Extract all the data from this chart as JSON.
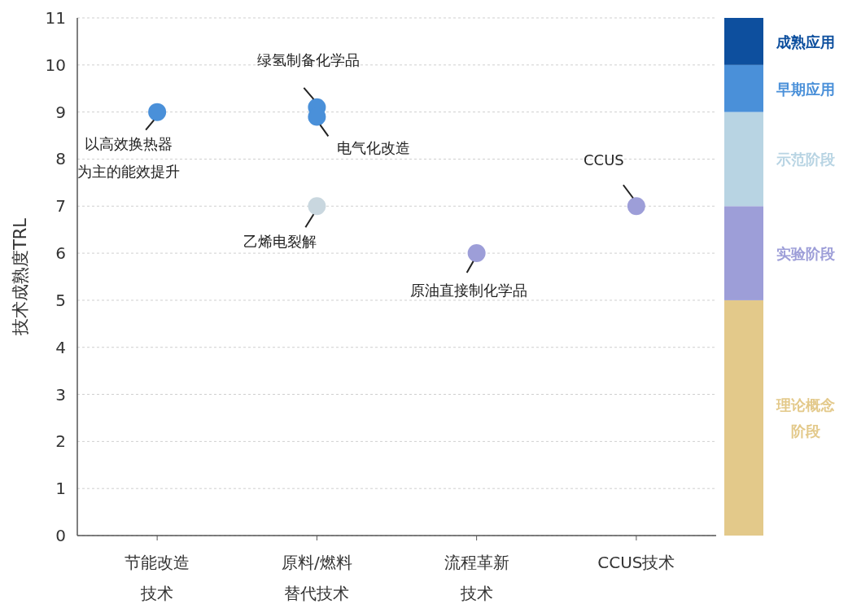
{
  "chart_data": [
    {
      "type": "scatter",
      "ylabel": "技术成熟度TRL",
      "categories": [
        "节能改造技术",
        "原料/燃料替代技术",
        "流程革新技术",
        "CCUS技术"
      ],
      "series": [
        {
          "x": [
            "节能改造技术",
            "原料/燃料替代技术",
            "原料/燃料替代技术",
            "原料/燃料替代技术",
            "流程革新技术",
            "CCUS技术"
          ],
          "values": [
            9,
            9.1,
            8.9,
            7,
            6,
            7
          ],
          "colors": [
            "#4a90d9",
            "#4a90d9",
            "#4a90d9",
            "#c9d7df",
            "#9d9ed8",
            "#9d9ed8"
          ]
        }
      ],
      "ylim": [
        0,
        11
      ],
      "yticks": [
        0,
        1,
        2,
        3,
        4,
        5,
        6,
        7,
        8,
        9,
        10,
        11
      ],
      "grid": "y",
      "marker": "circle",
      "annotations": [
        {
          "text": "以高效换热器",
          "x": "节能改造技术",
          "y": 9
        },
        "为主的能效提升",
        {
          "text": "绿氢制备化学品",
          "x": "原料/燃料替代技术",
          "y": 9.1
        },
        {
          "text": "电气化改造",
          "x": "原料/燃料替代技术",
          "y": 8.9
        },
        {
          "text": "乙烯电裂解",
          "x": "原料/燃料替代技术",
          "y": 7
        },
        {
          "text": "原油直接制化学品",
          "x": "流程革新技术",
          "y": 6
        },
        {
          "text": "CCUS",
          "x": "CCUS技术",
          "y": 7
        }
      ]
    },
    {
      "type": "bar",
      "stacked": true,
      "categories": [
        null
      ],
      "ylim": [
        0,
        11
      ],
      "series": [
        {
          "name": "理论概念阶段",
          "color": "#e3c98a",
          "values": [
            5
          ]
        },
        {
          "name": "实验阶段",
          "color": "#9d9ed8",
          "values": [
            2
          ]
        },
        {
          "name": "示范阶段",
          "color": "#b8d4e3",
          "values": [
            2
          ]
        },
        {
          "name": "早期应用",
          "color": "#4a90d9",
          "values": [
            1
          ]
        },
        {
          "name": "成熟应用",
          "color": "#0d4f9e",
          "values": [
            1
          ]
        }
      ]
    }
  ]
}
